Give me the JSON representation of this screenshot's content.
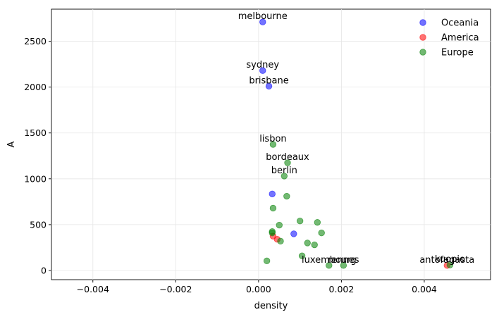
{
  "chart_data": {
    "type": "scatter",
    "title": "",
    "xlabel": "density",
    "ylabel": "A",
    "xlim": [
      -0.005,
      0.0056
    ],
    "ylim": [
      -100,
      2850
    ],
    "xticks": [
      -0.004,
      -0.002,
      0.0,
      0.002,
      0.004
    ],
    "xtick_labels": [
      "−0.004",
      "−0.002",
      "0.000",
      "0.002",
      "0.004"
    ],
    "yticks": [
      0,
      500,
      1000,
      1500,
      2000,
      2500
    ],
    "ytick_labels": [
      "0",
      "500",
      "1000",
      "1500",
      "2000",
      "2500"
    ],
    "grid": true,
    "legend_position": "top-right",
    "series": [
      {
        "name": "Oceania",
        "color": "#0000ff",
        "points": [
          {
            "x": 0.0001,
            "y": 2710,
            "label": "melbourne"
          },
          {
            "x": 0.0001,
            "y": 2180,
            "label": "sydney"
          },
          {
            "x": 0.00025,
            "y": 2010,
            "label": "brisbane"
          },
          {
            "x": 0.00033,
            "y": 835,
            "label": ""
          },
          {
            "x": 0.00085,
            "y": 400,
            "label": ""
          }
        ]
      },
      {
        "name": "America",
        "color": "#ff0000",
        "points": [
          {
            "x": 0.00035,
            "y": 375,
            "label": ""
          },
          {
            "x": 0.00045,
            "y": 340,
            "label": ""
          },
          {
            "x": 0.00455,
            "y": 55,
            "label": "antofagasta"
          }
        ]
      },
      {
        "name": "Europe",
        "color": "#008000",
        "points": [
          {
            "x": 0.00035,
            "y": 1375,
            "label": "lisbon"
          },
          {
            "x": 0.0007,
            "y": 1175,
            "label": "bordeaux"
          },
          {
            "x": 0.00062,
            "y": 1030,
            "label": "berlin"
          },
          {
            "x": 0.00068,
            "y": 810,
            "label": ""
          },
          {
            "x": 0.00035,
            "y": 680,
            "label": ""
          },
          {
            "x": 0.001,
            "y": 540,
            "label": ""
          },
          {
            "x": 0.00142,
            "y": 525,
            "label": ""
          },
          {
            "x": 0.0005,
            "y": 495,
            "label": ""
          },
          {
            "x": 0.00033,
            "y": 425,
            "label": ""
          },
          {
            "x": 0.00033,
            "y": 410,
            "label": ""
          },
          {
            "x": 0.00152,
            "y": 410,
            "label": ""
          },
          {
            "x": 0.00053,
            "y": 320,
            "label": ""
          },
          {
            "x": 0.00118,
            "y": 300,
            "label": ""
          },
          {
            "x": 0.00135,
            "y": 280,
            "label": ""
          },
          {
            "x": 0.00105,
            "y": 160,
            "label": ""
          },
          {
            "x": 0.0002,
            "y": 105,
            "label": ""
          },
          {
            "x": 0.0017,
            "y": 55,
            "label": "luxembourg"
          },
          {
            "x": 0.00205,
            "y": 55,
            "label": "rennes"
          },
          {
            "x": 0.00462,
            "y": 60,
            "label": "kuopio"
          }
        ]
      }
    ]
  }
}
